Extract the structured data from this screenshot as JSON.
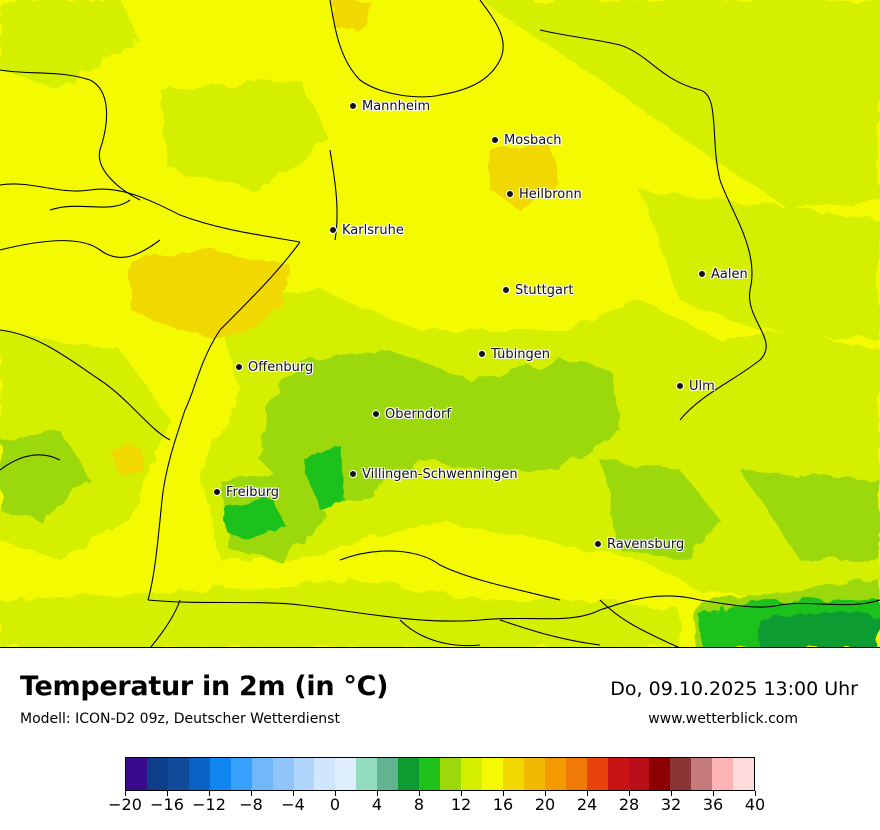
{
  "map": {
    "title": "Temperatur in 2m (in °C)",
    "model_line": "Modell: ICON-D2 09z, Deutscher Wetterdienst",
    "datetime": "Do, 09.10.2025 13:00 Uhr",
    "website": "www.wetterblick.com",
    "cities": [
      {
        "name": "Mannheim"
      },
      {
        "name": "Mosbach"
      },
      {
        "name": "Heilbronn"
      },
      {
        "name": "Karlsruhe"
      },
      {
        "name": "Aalen"
      },
      {
        "name": "Stuttgart"
      },
      {
        "name": "Tübingen"
      },
      {
        "name": "Offenburg"
      },
      {
        "name": "Ulm"
      },
      {
        "name": "Oberndorf"
      },
      {
        "name": "Villingen-Schwenningen"
      },
      {
        "name": "Freiburg"
      },
      {
        "name": "Ravensburg"
      }
    ]
  },
  "legend": {
    "unit": "°C",
    "min": -20,
    "max": 40,
    "step": 2,
    "tick_labels": [
      "−20",
      "−16",
      "−12",
      "−8",
      "−4",
      "0",
      "4",
      "8",
      "12",
      "16",
      "20",
      "24",
      "28",
      "32",
      "36",
      "40"
    ],
    "colors": [
      "#3a0a8c",
      "#0d3e8a",
      "#104a98",
      "#0a63c4",
      "#0f86f0",
      "#36a0fb",
      "#71b8fb",
      "#90c5fc",
      "#b0d6fd",
      "#cfe6fe",
      "#dfeefe",
      "#93dcc0",
      "#62b390",
      "#0e9c32",
      "#1fc11b",
      "#9bd908",
      "#d4ef00",
      "#f4fb00",
      "#f0d800",
      "#f1b900",
      "#f39a00",
      "#ef7a08",
      "#e9420b",
      "#c81414",
      "#b80f1a",
      "#8c0000",
      "#8a3535",
      "#c67b7b",
      "#fcb4b4",
      "#ffdcdc"
    ]
  }
}
